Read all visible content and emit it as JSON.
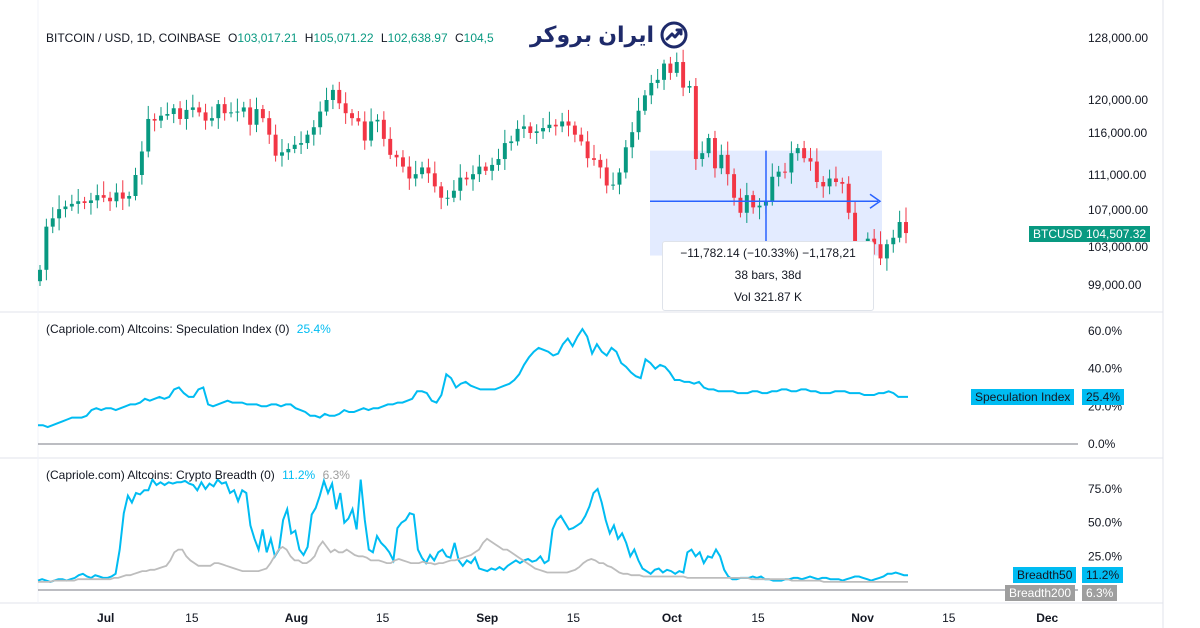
{
  "header": {
    "symbol": "BITCOIN / USD, 1D, COINBASE",
    "o_label": "O",
    "o_value": "103,017.21",
    "h_label": "H",
    "h_value": "105,071.22",
    "l_label": "L",
    "l_value": "102,638.97",
    "c_label": "C",
    "c_value": "104,5"
  },
  "brand": {
    "text": "ایران بروکر",
    "icon": "chart-arrow-icon",
    "color": "#1e2a6a"
  },
  "measure": {
    "line1": "−11,782.14 (−10.33%) −1,178,21",
    "line2": "38 bars, 38d",
    "line3": "Vol 321.87 K"
  },
  "price_tag": {
    "label": "BTCUSD",
    "value": "104,507.32",
    "color": "#089981"
  },
  "spec_tag": {
    "label": "Speculation Index",
    "value": "25.4%",
    "color": "#00bcf2"
  },
  "breadth_tags": [
    {
      "label": "Breadth50",
      "value": "11.2%",
      "color": "#00bcf2"
    },
    {
      "label": "Breadth200",
      "value": "6.3%",
      "color": "#9e9e9e"
    }
  ],
  "colors": {
    "up": "#089981",
    "down": "#f23645",
    "accent": "#00bcf2",
    "gray": "#bdbdbd",
    "measure": "#2962ff"
  },
  "chart_data": [
    {
      "type": "candlestick",
      "title": "BITCOIN / USD, 1D, COINBASE",
      "start_date": "2024-06-20",
      "y_ticks": [
        "128,000.00",
        "120,000.00",
        "116,000.00",
        "111,000.00",
        "107,000.00",
        "103,000.00",
        "99,000.00"
      ],
      "x_ticks": [
        {
          "label": "Jul",
          "date": "2025-07-01"
        },
        {
          "label": "15",
          "date": "2025-07-15"
        },
        {
          "label": "Aug",
          "date": "2025-08-01"
        },
        {
          "label": "15",
          "date": "2025-08-15"
        },
        {
          "label": "Sep",
          "date": "2025-09-01"
        },
        {
          "label": "15",
          "date": "2025-09-15"
        },
        {
          "label": "Oct",
          "date": "2025-10-01"
        },
        {
          "label": "15",
          "date": "2025-10-15"
        },
        {
          "label": "Nov",
          "date": "2025-11-01"
        },
        {
          "label": "15",
          "date": "2025-11-15"
        },
        {
          "label": "Dec",
          "date": "2025-12-01"
        }
      ],
      "closes": [
        100600,
        105200,
        106100,
        107100,
        107400,
        107700,
        108000,
        107800,
        108100,
        108700,
        108400,
        108000,
        109000,
        108300,
        108600,
        111000,
        113800,
        117700,
        117500,
        118100,
        118300,
        119000,
        117700,
        118800,
        119100,
        118500,
        117500,
        117800,
        119500,
        118400,
        118500,
        118600,
        119100,
        117000,
        118900,
        117800,
        115800,
        113300,
        113700,
        114100,
        114600,
        114800,
        115800,
        116700,
        118600,
        120000,
        121300,
        119600,
        118400,
        117800,
        117400,
        115100,
        117400,
        117600,
        115300,
        113400,
        113100,
        112000,
        110600,
        111100,
        111900,
        111200,
        109700,
        108400,
        108400,
        109200,
        110700,
        110500,
        111100,
        112000,
        111500,
        112200,
        112900,
        114800,
        115000,
        116500,
        116800,
        116000,
        116200,
        116600,
        117000,
        116800,
        117400,
        116900,
        115800,
        115000,
        113000,
        112800,
        111900,
        109800,
        109900,
        111300,
        114300,
        116100,
        118700,
        120600,
        122200,
        122600,
        124700,
        123500,
        124900,
        121600,
        121800,
        112900,
        113600,
        115400,
        111800,
        113400,
        111100,
        108400,
        106700,
        108700,
        107300,
        107500,
        108000,
        110800,
        111400,
        111300,
        113600,
        114200,
        113000,
        112600,
        110200,
        109700,
        110600,
        110200,
        110000,
        106700,
        101600,
        101800,
        103900,
        103300,
        101800,
        103300,
        104000,
        105700,
        104507
      ]
    },
    {
      "type": "line",
      "title": "(Capriole.com) Altcoins: Speculation Index (0)",
      "title_value": "25.4%",
      "y_ticks": [
        "60.0%",
        "40.0%",
        "20.0%",
        "0.0%"
      ],
      "series": [
        {
          "name": "Speculation Index",
          "color": "#00bcf2",
          "values": [
            10,
            10,
            9,
            10,
            11,
            12,
            13,
            14,
            14,
            14,
            15,
            18,
            19,
            18,
            19,
            19,
            18,
            19,
            20,
            21,
            21,
            22,
            24,
            23,
            24,
            25,
            24,
            25,
            29,
            30,
            27,
            25,
            25,
            29,
            30,
            21,
            20,
            21,
            22,
            23,
            22,
            22,
            22,
            21,
            21,
            21,
            20,
            20,
            21,
            21,
            20,
            21,
            21,
            19,
            18,
            17,
            15,
            15,
            14,
            16,
            15,
            15,
            16,
            18,
            17,
            17,
            18,
            19,
            18,
            19,
            19,
            20,
            21,
            21,
            22,
            22,
            23,
            24,
            28,
            28,
            27,
            23,
            22,
            26,
            37,
            35,
            30,
            32,
            33,
            31,
            30,
            29,
            29,
            29,
            29,
            30,
            31,
            32,
            34,
            37,
            42,
            46,
            49,
            51,
            50,
            49,
            47,
            48,
            53,
            56,
            52,
            57,
            61,
            57,
            48,
            53,
            49,
            47,
            51,
            49,
            43,
            41,
            38,
            36,
            35,
            45,
            43,
            40,
            42,
            41,
            38,
            34,
            34,
            33,
            33,
            32,
            33,
            30,
            29,
            29,
            28,
            28,
            28,
            28,
            27,
            27,
            27,
            28,
            28,
            27,
            27,
            28,
            28,
            29,
            29,
            28,
            28,
            29,
            29,
            28,
            28,
            27,
            27,
            27,
            28,
            28,
            28,
            27,
            27,
            27,
            26,
            26,
            26,
            27,
            27,
            28,
            27,
            25,
            25,
            25
          ]
        }
      ]
    },
    {
      "type": "line",
      "title": "(Capriole.com) Altcoins: Crypto Breadth (0)",
      "title_values": [
        "11.2%",
        "6.3%"
      ],
      "y_ticks": [
        "75.0%",
        "50.0%",
        "25.0%"
      ],
      "series": [
        {
          "name": "Breadth50",
          "color": "#00bcf2",
          "values": [
            7,
            8,
            7,
            6,
            7,
            8,
            8,
            7,
            8,
            9,
            11,
            12,
            10,
            9,
            11,
            10,
            9,
            9,
            10,
            12,
            30,
            57,
            70,
            65,
            72,
            71,
            74,
            74,
            82,
            78,
            80,
            78,
            80,
            79,
            80,
            80,
            81,
            79,
            78,
            74,
            80,
            75,
            79,
            77,
            82,
            79,
            80,
            72,
            74,
            66,
            74,
            72,
            48,
            38,
            30,
            45,
            28,
            38,
            25,
            30,
            52,
            60,
            42,
            44,
            30,
            26,
            32,
            56,
            61,
            70,
            81,
            72,
            79,
            60,
            72,
            50,
            53,
            60,
            45,
            82,
            52,
            30,
            28,
            40,
            35,
            32,
            28,
            22,
            46,
            50,
            52,
            57,
            56,
            30,
            24,
            20,
            26,
            22,
            28,
            30,
            25,
            24,
            35,
            22,
            18,
            22,
            20,
            24,
            16,
            15,
            14,
            16,
            15,
            17,
            15,
            18,
            20,
            22,
            20,
            22,
            23,
            21,
            22,
            25,
            20,
            22,
            45,
            52,
            55,
            50,
            45,
            46,
            48,
            50,
            55,
            62,
            72,
            75,
            65,
            52,
            42,
            48,
            38,
            42,
            35,
            25,
            30,
            22,
            16,
            14,
            12,
            15,
            16,
            13,
            15,
            14,
            12,
            14,
            13,
            28,
            30,
            25,
            28,
            20,
            25,
            24,
            30,
            25,
            15,
            10,
            8,
            8,
            9,
            9,
            9,
            10,
            9,
            10,
            8,
            8,
            7,
            7,
            7,
            8,
            8,
            9,
            9,
            8,
            9,
            10,
            9,
            8,
            9,
            9,
            8,
            8,
            8,
            7,
            8,
            9,
            10,
            10,
            9,
            8,
            7,
            8,
            9,
            10,
            12,
            12,
            13,
            12,
            11,
            11
          ]
        },
        {
          "name": "Breadth200",
          "color": "#bdbdbd",
          "values": [
            6,
            6,
            6,
            6,
            7,
            7,
            7,
            7,
            7,
            7,
            8,
            8,
            8,
            8,
            8,
            8,
            8,
            8,
            8,
            9,
            9,
            10,
            11,
            11,
            12,
            13,
            14,
            14,
            15,
            15,
            16,
            17,
            18,
            22,
            28,
            30,
            30,
            25,
            22,
            20,
            18,
            18,
            18,
            18,
            20,
            20,
            19,
            18,
            17,
            16,
            15,
            14,
            14,
            14,
            14,
            14,
            15,
            16,
            20,
            25,
            30,
            32,
            30,
            25,
            22,
            22,
            20,
            20,
            22,
            25,
            32,
            36,
            32,
            28,
            30,
            28,
            28,
            30,
            28,
            26,
            25,
            25,
            24,
            22,
            22,
            22,
            21,
            20,
            20,
            22,
            23,
            22,
            21,
            20,
            20,
            20,
            21,
            20,
            20,
            19,
            20,
            20,
            21,
            22,
            22,
            23,
            24,
            25,
            26,
            28,
            30,
            35,
            38,
            36,
            34,
            32,
            30,
            30,
            28,
            26,
            24,
            22,
            20,
            18,
            16,
            15,
            14,
            13,
            13,
            13,
            13,
            13,
            13,
            14,
            15,
            17,
            20,
            22,
            23,
            22,
            20,
            20,
            18,
            17,
            15,
            13,
            12,
            12,
            11,
            11,
            11,
            10,
            10,
            10,
            10,
            10,
            10,
            10,
            10,
            10,
            10,
            10,
            9,
            9,
            9,
            9,
            9,
            9,
            9,
            9,
            9,
            9,
            9,
            9,
            9,
            9,
            9,
            9,
            8,
            8,
            8,
            8,
            8,
            8,
            8,
            8,
            8,
            8,
            7,
            7,
            7,
            7,
            7,
            7,
            7,
            7,
            6,
            6,
            6,
            6,
            6,
            6,
            6,
            6,
            6,
            6,
            6,
            6,
            6,
            6,
            6,
            6,
            6,
            6,
            6,
            6,
            6,
            6
          ]
        }
      ]
    }
  ]
}
